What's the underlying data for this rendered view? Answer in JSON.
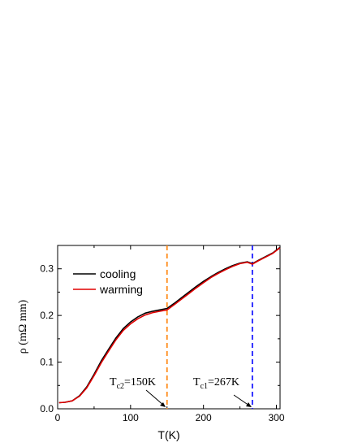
{
  "chart_data": {
    "type": "line",
    "xlabel": "T(K)",
    "ylabel": "ρ (mΩ mm)",
    "xlim": [
      0,
      305
    ],
    "ylim": [
      0,
      0.35
    ],
    "x_ticks": [
      "0",
      "100",
      "200",
      "300"
    ],
    "y_ticks": [
      "0.0",
      "0.1",
      "0.2",
      "0.3"
    ],
    "legend_position": "top-left",
    "series": [
      {
        "name": "cooling",
        "color": "#000000",
        "x": [
          2,
          10,
          20,
          30,
          40,
          50,
          60,
          70,
          80,
          90,
          100,
          110,
          120,
          130,
          140,
          150,
          160,
          170,
          180,
          190,
          200,
          210,
          220,
          230,
          240,
          250,
          260,
          267,
          275,
          285,
          295,
          305
        ],
        "y": [
          0.013,
          0.014,
          0.017,
          0.028,
          0.047,
          0.074,
          0.103,
          0.128,
          0.152,
          0.172,
          0.186,
          0.197,
          0.205,
          0.209,
          0.212,
          0.215,
          0.226,
          0.238,
          0.25,
          0.262,
          0.273,
          0.283,
          0.292,
          0.3,
          0.307,
          0.312,
          0.315,
          0.311,
          0.318,
          0.326,
          0.334,
          0.346
        ]
      },
      {
        "name": "warming",
        "color": "#e00000",
        "x": [
          2,
          10,
          20,
          30,
          40,
          50,
          60,
          70,
          80,
          90,
          100,
          110,
          120,
          130,
          140,
          150,
          160,
          170,
          180,
          190,
          200,
          210,
          220,
          230,
          240,
          250,
          260,
          267,
          275,
          285,
          295,
          305
        ],
        "y": [
          0.013,
          0.014,
          0.017,
          0.027,
          0.045,
          0.071,
          0.099,
          0.124,
          0.148,
          0.168,
          0.182,
          0.193,
          0.201,
          0.206,
          0.209,
          0.212,
          0.223,
          0.235,
          0.247,
          0.259,
          0.27,
          0.281,
          0.29,
          0.298,
          0.305,
          0.311,
          0.314,
          0.31,
          0.317,
          0.325,
          0.333,
          0.345
        ]
      }
    ],
    "markers": [
      {
        "x": 150,
        "color": "#ff8c1a",
        "label_main": "T",
        "label_sub": "c2",
        "label_rest": "=150K"
      },
      {
        "x": 267,
        "color": "#1a1aff",
        "label_main": "T",
        "label_sub": "c1",
        "label_rest": "=267K"
      }
    ]
  }
}
